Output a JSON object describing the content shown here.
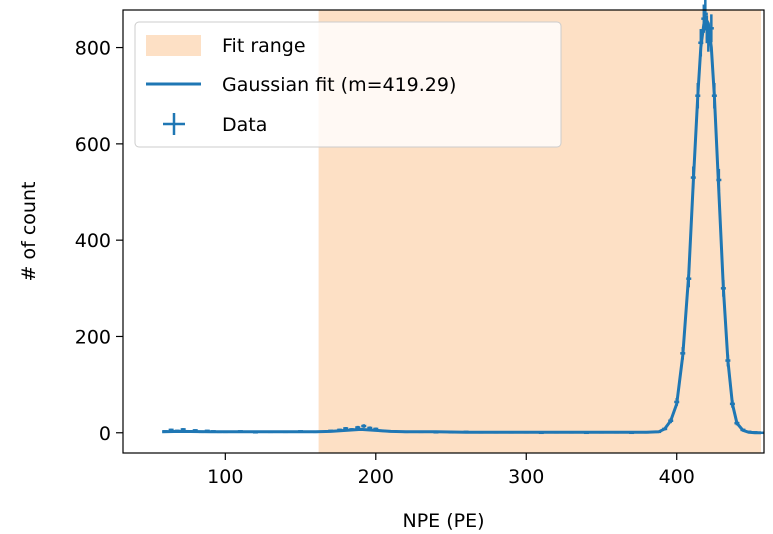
{
  "chart_data": {
    "type": "line",
    "xlabel": "NPE (PE)",
    "ylabel": "# of count",
    "xlim": [
      32,
      458
    ],
    "ylim": [
      -42,
      878
    ],
    "x_ticks": [
      100,
      200,
      300,
      400
    ],
    "y_ticks": [
      0,
      200,
      400,
      600,
      800
    ],
    "fit_range": [
      162,
      456
    ],
    "legend": {
      "placement": "upper-left",
      "entries": [
        "Fit range",
        "Gaussian fit (m=419.29)",
        "Data"
      ]
    },
    "colors": {
      "fit_range": "#fde0c5",
      "line": "#1f77b4",
      "data": "#1f77b4"
    },
    "series": [
      {
        "name": "Gaussian fit (m=419.29)",
        "x": [
          58,
          70,
          90,
          110,
          130,
          150,
          160,
          170,
          180,
          190,
          200,
          210,
          220,
          240,
          260,
          280,
          300,
          320,
          340,
          360,
          380,
          388,
          392,
          396,
          400,
          404,
          408,
          411,
          414,
          416,
          418,
          419.29,
          421,
          423,
          425,
          428,
          431,
          434,
          437,
          440,
          444,
          448,
          452,
          456
        ],
        "y": [
          2,
          3,
          2,
          2,
          2,
          2,
          2,
          3,
          5,
          7,
          5,
          3,
          2,
          2,
          1,
          1,
          1,
          1,
          1,
          1,
          1,
          2,
          8,
          25,
          60,
          160,
          330,
          520,
          700,
          800,
          848,
          860,
          850,
          800,
          700,
          500,
          300,
          150,
          60,
          20,
          5,
          1,
          0,
          0
        ]
      },
      {
        "name": "Data",
        "x": [
          60,
          64,
          68,
          72,
          76,
          80,
          84,
          88,
          92,
          96,
          100,
          110,
          120,
          130,
          140,
          150,
          160,
          170,
          176,
          180,
          184,
          188,
          192,
          196,
          200,
          204,
          210,
          220,
          230,
          240,
          250,
          260,
          270,
          280,
          290,
          300,
          310,
          320,
          330,
          340,
          350,
          360,
          370,
          380,
          388,
          392,
          396,
          400,
          404,
          408,
          411,
          414,
          416,
          418,
          419,
          420,
          421,
          423,
          425,
          428,
          431,
          434,
          437,
          440,
          444,
          448,
          452,
          456
        ],
        "y": [
          3,
          6,
          4,
          7,
          3,
          5,
          2,
          4,
          3,
          2,
          2,
          3,
          1,
          2,
          2,
          3,
          2,
          4,
          6,
          9,
          7,
          11,
          14,
          10,
          8,
          4,
          3,
          2,
          2,
          1,
          1,
          2,
          1,
          1,
          1,
          1,
          0,
          1,
          1,
          0,
          1,
          1,
          0,
          1,
          2,
          8,
          25,
          64,
          165,
          320,
          530,
          700,
          810,
          860,
          870,
          838,
          820,
          840,
          700,
          525,
          300,
          150,
          60,
          20,
          6,
          2,
          1,
          0
        ]
      }
    ]
  }
}
